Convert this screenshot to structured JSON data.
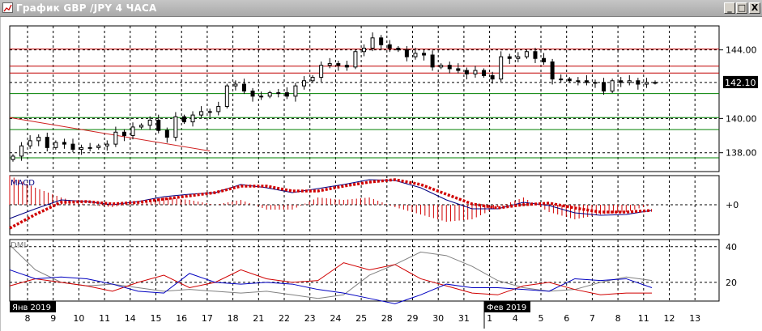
{
  "window": {
    "title": "График GBP /JPY  4 ЧАСА",
    "minimize_label": "_",
    "maximize_label": "□",
    "close_label": "X"
  },
  "chart_data": [
    {
      "type": "candlestick",
      "panel": "price",
      "instrument": "GBP/JPY",
      "timeframe": "4 ЧАСА",
      "y_ticks": [
        "144.00",
        "140.00",
        "138.00"
      ],
      "y_tick_values": [
        144,
        140,
        138
      ],
      "ylim": [
        136.9,
        145.4
      ],
      "current_price": "142.10",
      "current_price_value": 142.1,
      "closes": [
        137.8,
        138.4,
        138.7,
        138.9,
        138.3,
        138.6,
        138.5,
        138.2,
        138.3,
        138.3,
        138.4,
        138.5,
        139.2,
        139.0,
        139.5,
        139.6,
        139.9,
        139.3,
        138.9,
        140.1,
        139.8,
        140.2,
        140.4,
        140.4,
        140.7,
        141.9,
        142.0,
        141.6,
        141.3,
        141.3,
        141.5,
        141.5,
        141.3,
        141.9,
        142.2,
        142.4,
        143.1,
        143.2,
        143.1,
        143.0,
        143.9,
        144.1,
        144.7,
        144.3,
        144.1,
        144.0,
        143.6,
        143.8,
        143.7,
        143.0,
        143.1,
        142.9,
        142.8,
        142.6,
        142.8,
        142.5,
        142.3,
        143.6,
        143.5,
        143.6,
        143.9,
        143.5,
        143.3,
        142.3,
        142.3,
        142.2,
        142.2,
        142.1,
        142.1,
        141.6,
        142.2,
        142.1,
        142.2,
        142.0,
        142.1,
        142.1
      ],
      "resistance_lines": [
        144.05,
        143.05,
        142.65
      ],
      "support_lines": [
        141.45,
        140.05,
        139.35,
        137.7
      ],
      "trendline": {
        "from": [
          0,
          140.05
        ],
        "to": [
          7.8,
          138.1
        ]
      },
      "colors": {
        "resistance": "#c00000",
        "support": "#008000",
        "trendline": "#d02020",
        "candle": "#000000"
      }
    },
    {
      "type": "line",
      "panel": "MACD",
      "label": "MACD",
      "y_ticks": [
        "+0"
      ],
      "ylim": [
        -3.7,
        3.6
      ],
      "series": [
        {
          "role": "macd",
          "color": "#000080",
          "values": [
            -1.7,
            -0.5,
            0.6,
            0.4,
            0,
            0.4,
            1.0,
            1.3,
            1.5,
            2.5,
            2.1,
            1.5,
            2.0,
            2.5,
            3.1,
            3.0,
            2.1,
            0.6,
            -0.5,
            -0.5,
            0.3,
            -0.1,
            -1.0,
            -1.3,
            -1.2,
            -0.7
          ]
        },
        {
          "role": "signal",
          "color": "#d00000",
          "values": [
            -2.9,
            -1.2,
            0.3,
            0.4,
            0.1,
            0.3,
            0.7,
            1.1,
            1.5,
            2.3,
            2.3,
            1.7,
            1.7,
            2.3,
            2.8,
            3.1,
            2.5,
            1.3,
            0.1,
            -0.4,
            0,
            0.2,
            -0.4,
            -0.9,
            -0.9,
            -0.7
          ]
        }
      ]
    },
    {
      "type": "line",
      "panel": "DMI",
      "label": "DMI",
      "y_ticks": [
        "40",
        "20"
      ],
      "y_tick_values": [
        40,
        20
      ],
      "ylim": [
        9.5,
        44
      ],
      "series": [
        {
          "role": "adx",
          "color": "#808080",
          "values": [
            41,
            27,
            20,
            18,
            19,
            17,
            15,
            16,
            15,
            14,
            15,
            13,
            11,
            13,
            24,
            30,
            37,
            35,
            29,
            21,
            17,
            15,
            16,
            20,
            23,
            21
          ]
        },
        {
          "role": "plus-di",
          "color": "#d00000",
          "values": [
            18,
            22,
            20,
            18,
            15,
            20,
            24,
            17,
            20,
            27,
            22,
            20,
            21,
            31,
            27,
            30,
            22,
            18,
            14,
            13,
            18,
            20,
            16,
            13,
            14,
            14
          ]
        },
        {
          "role": "minus-di",
          "color": "#0000c0",
          "values": [
            27,
            22,
            23,
            22,
            19,
            15,
            14,
            25,
            20,
            19,
            20,
            19,
            16,
            14,
            11,
            8,
            13,
            19,
            17,
            17,
            16,
            15,
            22,
            21,
            22,
            17
          ]
        }
      ]
    }
  ],
  "time_axis": {
    "month_labels": [
      "Янв 2019",
      "Фев 2019"
    ],
    "day_labels": [
      "8",
      "9",
      "10",
      "11",
      "14",
      "15",
      "16",
      "17",
      "18",
      "21",
      "22",
      "23",
      "24",
      "25",
      "28",
      "29",
      "30",
      "31",
      "1",
      "4",
      "5",
      "6",
      "7",
      "8",
      "11",
      "12",
      "13"
    ]
  }
}
